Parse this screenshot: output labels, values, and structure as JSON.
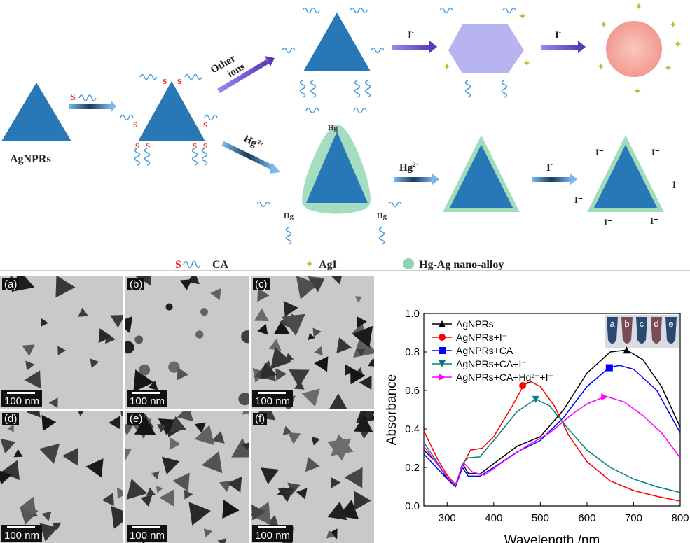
{
  "scheme": {
    "agnprs_label": "AgNPRs",
    "other_ions_line1": "Other",
    "other_ions_line2": "ions",
    "hg_label": "Hg",
    "hg_sup": "2+",
    "iodide": "I",
    "iodide_sup": "-",
    "sulfur": "S",
    "hg_atom": "Hg",
    "legend": {
      "ca": "CA",
      "agi": "AgI",
      "alloy": "Hg-Ag nano-alloy"
    },
    "colors": {
      "triangle": "#2878b8",
      "chain": "#4a9be0",
      "sulfur": "#e8202a",
      "hexagon": "#b8b4f0",
      "sphere": "#f8b0a8",
      "alloy": "#8fd4b0",
      "agi": "#c8d040"
    }
  },
  "tem": {
    "panels": [
      "(a)",
      "(b)",
      "(c)",
      "(d)",
      "(e)",
      "(f)"
    ],
    "scale_label": "100 nm"
  },
  "chart_data": {
    "type": "line",
    "xlabel": "Wavelength /nm",
    "ylabel": "Absorbance",
    "xlim": [
      250,
      800
    ],
    "ylim": [
      0.0,
      1.0
    ],
    "xticks": [
      300,
      400,
      500,
      600,
      700,
      800
    ],
    "yticks": [
      0.0,
      0.2,
      0.4,
      0.6,
      0.8,
      1.0
    ],
    "legend_position": "top-left",
    "inset_labels": [
      "a",
      "b",
      "c",
      "d",
      "e"
    ],
    "series": [
      {
        "name": "AgNPRs",
        "color": "#000000",
        "marker": "triangle-up",
        "marker_at": [
          685,
          0.81
        ],
        "x": [
          250,
          280,
          300,
          318,
          333,
          345,
          370,
          400,
          450,
          500,
          550,
          600,
          650,
          685,
          720,
          760,
          800
        ],
        "y": [
          0.29,
          0.22,
          0.14,
          0.1,
          0.22,
          0.17,
          0.165,
          0.22,
          0.31,
          0.36,
          0.5,
          0.69,
          0.8,
          0.81,
          0.76,
          0.62,
          0.41
        ]
      },
      {
        "name": "AgNPRs+I⁻",
        "color": "#ff0000",
        "marker": "circle",
        "marker_at": [
          462,
          0.625
        ],
        "x": [
          250,
          280,
          300,
          318,
          333,
          350,
          375,
          400,
          440,
          465,
          480,
          500,
          530,
          560,
          600,
          650,
          700,
          750,
          800
        ],
        "y": [
          0.39,
          0.24,
          0.16,
          0.11,
          0.21,
          0.29,
          0.3,
          0.36,
          0.52,
          0.63,
          0.645,
          0.62,
          0.52,
          0.37,
          0.23,
          0.13,
          0.08,
          0.05,
          0.025
        ]
      },
      {
        "name": "AgNPRs+CA",
        "color": "#0000ff",
        "marker": "square",
        "marker_at": [
          648,
          0.718
        ],
        "x": [
          250,
          300,
          318,
          333,
          345,
          370,
          400,
          450,
          500,
          550,
          600,
          648,
          670,
          700,
          750,
          800
        ],
        "y": [
          0.27,
          0.14,
          0.1,
          0.2,
          0.155,
          0.155,
          0.2,
          0.28,
          0.34,
          0.46,
          0.62,
          0.72,
          0.73,
          0.71,
          0.6,
          0.38
        ]
      },
      {
        "name": "AgNPRs+CA+I⁻",
        "color": "#008080",
        "marker": "triangle-down",
        "marker_at": [
          490,
          0.553
        ],
        "x": [
          250,
          300,
          318,
          333,
          345,
          370,
          400,
          450,
          490,
          520,
          560,
          600,
          650,
          700,
          750,
          800
        ],
        "y": [
          0.33,
          0.15,
          0.105,
          0.22,
          0.25,
          0.255,
          0.34,
          0.49,
          0.555,
          0.52,
          0.4,
          0.29,
          0.2,
          0.14,
          0.1,
          0.07
        ]
      },
      {
        "name": "AgNPRs+CA+Hg²⁺+I⁻",
        "color": "#ff00ff",
        "marker": "triangle-right",
        "marker_at": [
          638,
          0.567
        ],
        "x": [
          250,
          300,
          318,
          335,
          355,
          380,
          420,
          470,
          520,
          570,
          600,
          640,
          680,
          720,
          760,
          800
        ],
        "y": [
          0.31,
          0.15,
          0.11,
          0.225,
          0.175,
          0.16,
          0.23,
          0.31,
          0.38,
          0.48,
          0.53,
          0.57,
          0.54,
          0.47,
          0.38,
          0.25
        ]
      }
    ]
  }
}
